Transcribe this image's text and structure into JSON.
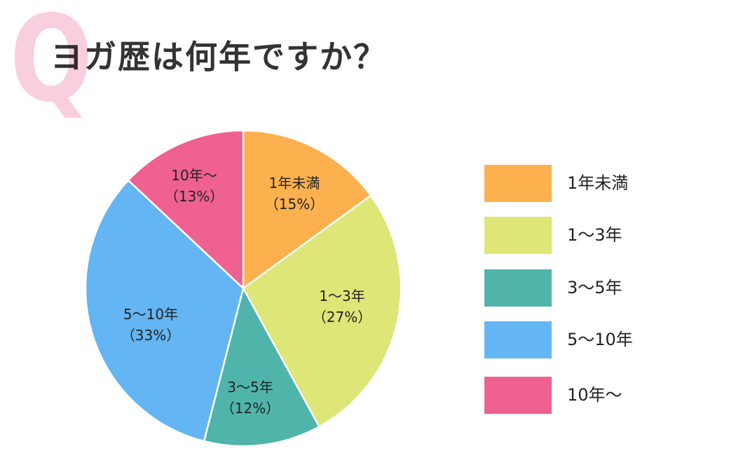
{
  "header": {
    "q_mark": "Q",
    "title": "ヨガ歴は何年ですか？"
  },
  "chart_data": {
    "type": "pie",
    "title": "ヨガ歴は何年ですか？",
    "categories": [
      "1年未満",
      "1〜3年",
      "3〜5年",
      "5〜10年",
      "10年〜"
    ],
    "values": [
      15,
      27,
      12,
      33,
      13
    ],
    "unit": "%",
    "colors": [
      "#fdb14e",
      "#dde677",
      "#4fb5ab",
      "#64b5f3",
      "#ef6190"
    ],
    "start_angle": "12 o'clock, clockwise",
    "legend_position": "right"
  },
  "slices": [
    {
      "name": "1年未満",
      "pct": "（15%）",
      "color": "#fdb14e"
    },
    {
      "name": "1〜3年",
      "pct": "（27%）",
      "color": "#dde677"
    },
    {
      "name": "3〜5年",
      "pct": "（12%）",
      "color": "#4fb5ab"
    },
    {
      "name": "5〜10年",
      "pct": "（33%）",
      "color": "#64b5f3"
    },
    {
      "name": "10年〜",
      "pct": "（13%）",
      "color": "#ef6190"
    }
  ],
  "legend": {
    "items": [
      {
        "label": "1年未満",
        "color": "#fdb14e"
      },
      {
        "label": "1〜3年",
        "color": "#dde677"
      },
      {
        "label": "3〜5年",
        "color": "#4fb5ab"
      },
      {
        "label": "5〜10年",
        "color": "#64b5f3"
      },
      {
        "label": "10年〜",
        "color": "#ef6190"
      }
    ]
  }
}
